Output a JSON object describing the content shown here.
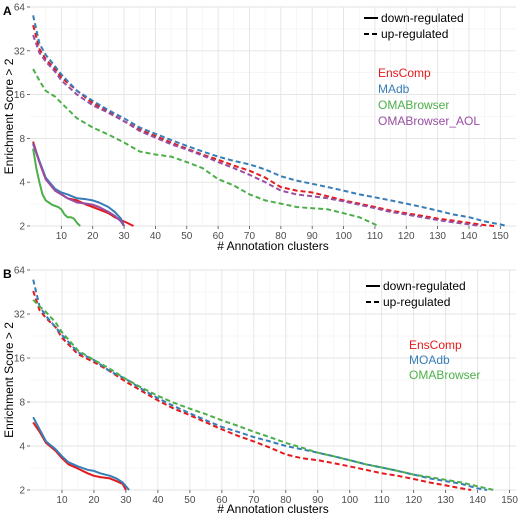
{
  "chart_data": [
    {
      "type": "line",
      "panel_label": "A",
      "xlabel": "# Annotation clusters",
      "ylabel": "Enrichment Score > 2",
      "xlim": [
        0,
        155
      ],
      "ylim": [
        2,
        64
      ],
      "y_scale": "log2",
      "x_ticks": [
        "10",
        "20",
        "30",
        "40",
        "50",
        "60",
        "70",
        "80",
        "90",
        "100",
        "110",
        "120",
        "130",
        "140",
        "150"
      ],
      "y_ticks": [
        "2",
        "4",
        "8",
        "16",
        "32",
        "64"
      ],
      "grid": true,
      "line_style_legend": [
        {
          "label": "down-regulated",
          "dash": "solid"
        },
        {
          "label": "up-regulated",
          "dash": "dashed"
        }
      ],
      "series": [
        {
          "name": "EnsComp",
          "color": "#e41a1c",
          "style": "solid",
          "x": [
            1,
            3,
            5,
            8,
            10,
            12,
            15,
            18,
            20,
            22,
            25,
            27,
            29,
            31,
            33
          ],
          "y": [
            7.6,
            5.5,
            4.2,
            3.5,
            3.3,
            3.1,
            3.0,
            2.8,
            2.7,
            2.6,
            2.45,
            2.3,
            2.2,
            2.1,
            2.0
          ]
        },
        {
          "name": "EnsComp",
          "color": "#e41a1c",
          "style": "dashed",
          "x": [
            1,
            3,
            5,
            8,
            10,
            15,
            20,
            25,
            30,
            35,
            40,
            45,
            50,
            55,
            60,
            65,
            70,
            75,
            80,
            85,
            90,
            95,
            100,
            105,
            110,
            115,
            120,
            125,
            130,
            135,
            140,
            145,
            148
          ],
          "y": [
            48,
            33,
            28,
            24,
            21,
            17,
            14,
            12.2,
            10.5,
            9.2,
            8.3,
            7.5,
            6.8,
            6.2,
            5.7,
            5.2,
            4.8,
            4.3,
            3.7,
            3.5,
            3.4,
            3.2,
            3.0,
            2.85,
            2.7,
            2.55,
            2.45,
            2.35,
            2.25,
            2.18,
            2.1,
            2.03,
            2.0
          ]
        },
        {
          "name": "MAdb",
          "color": "#377eb8",
          "style": "solid",
          "x": [
            1,
            3,
            5,
            8,
            10,
            12,
            15,
            18,
            20,
            22,
            25,
            27,
            29,
            30
          ],
          "y": [
            7.4,
            5.6,
            4.3,
            3.6,
            3.4,
            3.3,
            3.1,
            3.05,
            3.0,
            2.9,
            2.7,
            2.5,
            2.25,
            2.0
          ]
        },
        {
          "name": "MAdb",
          "color": "#377eb8",
          "style": "dashed",
          "x": [
            1,
            3,
            5,
            8,
            10,
            15,
            20,
            25,
            30,
            35,
            40,
            45,
            50,
            55,
            60,
            65,
            70,
            75,
            80,
            85,
            90,
            95,
            100,
            105,
            110,
            115,
            120,
            125,
            130,
            135,
            140,
            145,
            150,
            152
          ],
          "y": [
            56,
            36,
            30,
            25,
            22,
            17,
            14.5,
            12.5,
            11,
            9.5,
            8.6,
            7.8,
            7.1,
            6.5,
            6.0,
            5.6,
            5.3,
            4.9,
            4.4,
            4.1,
            3.9,
            3.7,
            3.5,
            3.3,
            3.15,
            3.0,
            2.85,
            2.7,
            2.55,
            2.4,
            2.3,
            2.15,
            2.05,
            2.0
          ]
        },
        {
          "name": "OMABrowser",
          "color": "#4daf4a",
          "style": "solid",
          "x": [
            1,
            2,
            3,
            4,
            5,
            6,
            7,
            8,
            9,
            10,
            11,
            12,
            13,
            14,
            15,
            16
          ],
          "y": [
            6.8,
            5.0,
            4.0,
            3.3,
            3.0,
            2.9,
            2.8,
            2.75,
            2.7,
            2.6,
            2.4,
            2.3,
            2.3,
            2.25,
            2.1,
            2.0
          ]
        },
        {
          "name": "OMABrowser",
          "color": "#4daf4a",
          "style": "dashed",
          "x": [
            1,
            3,
            5,
            8,
            10,
            15,
            20,
            25,
            30,
            35,
            40,
            45,
            50,
            55,
            60,
            65,
            70,
            75,
            80,
            85,
            90,
            95,
            100,
            105,
            108,
            110,
            111
          ],
          "y": [
            24,
            20,
            17,
            15.5,
            14,
            11,
            9.5,
            8.5,
            7.5,
            6.5,
            6.2,
            6.0,
            5.5,
            5.0,
            4.2,
            3.8,
            3.3,
            3.0,
            2.85,
            2.7,
            2.65,
            2.6,
            2.45,
            2.3,
            2.15,
            2.05,
            2.0
          ]
        },
        {
          "name": "OMABrowser_AOL",
          "color": "#984ea3",
          "style": "solid",
          "x": [
            1,
            3,
            5,
            8,
            10,
            12,
            15,
            18,
            20,
            22,
            25,
            27,
            29,
            30
          ],
          "y": [
            7.3,
            5.5,
            4.2,
            3.5,
            3.3,
            3.1,
            2.9,
            2.85,
            2.8,
            2.7,
            2.5,
            2.35,
            2.15,
            2.0
          ]
        },
        {
          "name": "OMABrowser_AOL",
          "color": "#984ea3",
          "style": "dashed",
          "x": [
            1,
            3,
            5,
            8,
            10,
            15,
            20,
            25,
            30,
            35,
            40,
            45,
            50,
            55,
            60,
            65,
            70,
            75,
            80,
            85,
            90,
            95,
            100,
            105,
            110,
            115,
            120,
            125,
            130,
            135,
            140,
            144
          ],
          "y": [
            41,
            31,
            27,
            23,
            20,
            16,
            13.5,
            12,
            10.5,
            9.0,
            8.1,
            7.3,
            6.7,
            6.1,
            5.5,
            5.0,
            4.5,
            4.0,
            3.5,
            3.3,
            3.2,
            3.1,
            2.95,
            2.8,
            2.65,
            2.5,
            2.4,
            2.3,
            2.2,
            2.12,
            2.05,
            2.0
          ]
        }
      ]
    },
    {
      "type": "line",
      "panel_label": "B",
      "xlabel": "# Annotation clusters",
      "ylabel": "Enrichment Score > 2",
      "xlim": [
        0,
        152
      ],
      "ylim": [
        2,
        64
      ],
      "y_scale": "log2",
      "x_ticks": [
        "10",
        "20",
        "30",
        "40",
        "50",
        "60",
        "70",
        "80",
        "90",
        "100",
        "110",
        "120",
        "130",
        "140",
        "150"
      ],
      "y_ticks": [
        "2",
        "4",
        "8",
        "16",
        "32",
        "64"
      ],
      "grid": true,
      "line_style_legend": [
        {
          "label": "down-regulated",
          "dash": "solid"
        },
        {
          "label": "up-regulated",
          "dash": "dashed"
        }
      ],
      "series": [
        {
          "name": "EnsComp",
          "color": "#e41a1c",
          "style": "solid",
          "x": [
            1,
            3,
            5,
            8,
            10,
            12,
            15,
            18,
            20,
            22,
            25,
            27,
            29,
            30
          ],
          "y": [
            5.8,
            5.0,
            4.2,
            3.7,
            3.3,
            3.0,
            2.8,
            2.6,
            2.5,
            2.45,
            2.4,
            2.3,
            2.2,
            2.0
          ]
        },
        {
          "name": "EnsComp",
          "color": "#e41a1c",
          "style": "dashed",
          "x": [
            1,
            3,
            5,
            8,
            10,
            15,
            20,
            25,
            30,
            35,
            40,
            45,
            50,
            55,
            60,
            65,
            70,
            75,
            80,
            85,
            90,
            95,
            100,
            105,
            110,
            115,
            120,
            125,
            130,
            135,
            138
          ],
          "y": [
            46,
            34,
            30,
            26,
            22,
            17,
            15,
            13,
            11,
            9.5,
            8.2,
            7.2,
            6.5,
            5.8,
            5.2,
            4.7,
            4.3,
            3.9,
            3.5,
            3.3,
            3.2,
            3.05,
            2.9,
            2.75,
            2.6,
            2.5,
            2.38,
            2.25,
            2.15,
            2.05,
            2.0
          ]
        },
        {
          "name": "MOAdb",
          "color": "#377eb8",
          "style": "solid",
          "x": [
            1,
            3,
            5,
            8,
            10,
            12,
            15,
            18,
            20,
            22,
            25,
            27,
            29,
            31
          ],
          "y": [
            6.3,
            5.2,
            4.3,
            3.8,
            3.4,
            3.1,
            2.9,
            2.75,
            2.7,
            2.6,
            2.5,
            2.4,
            2.25,
            2.0
          ]
        },
        {
          "name": "MOAdb",
          "color": "#377eb8",
          "style": "dashed",
          "x": [
            1,
            3,
            5,
            8,
            10,
            15,
            20,
            25,
            30,
            35,
            40,
            45,
            50,
            55,
            60,
            65,
            70,
            75,
            80,
            85,
            90,
            95,
            100,
            105,
            110,
            115,
            120,
            125,
            130,
            135,
            140,
            143
          ],
          "y": [
            55,
            36,
            31,
            26,
            23,
            17.5,
            15.5,
            13,
            11.5,
            9.8,
            8.5,
            7.5,
            6.7,
            6.0,
            5.4,
            5.0,
            4.6,
            4.3,
            4.0,
            3.8,
            3.6,
            3.4,
            3.2,
            3.0,
            2.85,
            2.7,
            2.55,
            2.4,
            2.3,
            2.2,
            2.05,
            2.0
          ]
        },
        {
          "name": "OMABrowser",
          "color": "#4daf4a",
          "style": "dashed",
          "x": [
            1,
            3,
            5,
            8,
            10,
            15,
            20,
            25,
            30,
            35,
            40,
            45,
            50,
            55,
            60,
            65,
            70,
            75,
            80,
            85,
            90,
            95,
            100,
            105,
            110,
            115,
            120,
            125,
            130,
            135,
            140,
            145
          ],
          "y": [
            40,
            36,
            33,
            28,
            24,
            18,
            15.5,
            13.5,
            11.5,
            10,
            8.8,
            7.9,
            7.2,
            6.6,
            6.0,
            5.5,
            5.0,
            4.6,
            4.2,
            3.9,
            3.6,
            3.4,
            3.2,
            3.0,
            2.85,
            2.7,
            2.55,
            2.45,
            2.35,
            2.25,
            2.12,
            2.0
          ]
        }
      ]
    }
  ]
}
